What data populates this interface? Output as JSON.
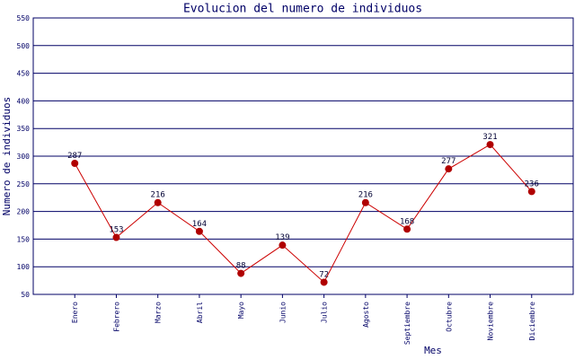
{
  "chart_data": {
    "type": "line",
    "title": "Evolucion del numero de individuos",
    "x_label": "Mes",
    "y_label": "Numero de individuos",
    "categories": [
      "Enero",
      "Febrero",
      "Marzo",
      "Abril",
      "Mayo",
      "Junio",
      "Julio",
      "Agosto",
      "Septiembre",
      "Octubre",
      "Noviembre",
      "Diciembre"
    ],
    "values": [
      287,
      153,
      216,
      164,
      88,
      139,
      72,
      216,
      168,
      277,
      321,
      236
    ],
    "color": "#cc0000",
    "marker_color": "#b00000",
    "grid_color": "#000066",
    "ylim": [
      50,
      550
    ],
    "yticks": [
      50,
      100,
      150,
      200,
      250,
      300,
      350,
      400,
      450,
      500,
      550
    ],
    "grid": true
  }
}
